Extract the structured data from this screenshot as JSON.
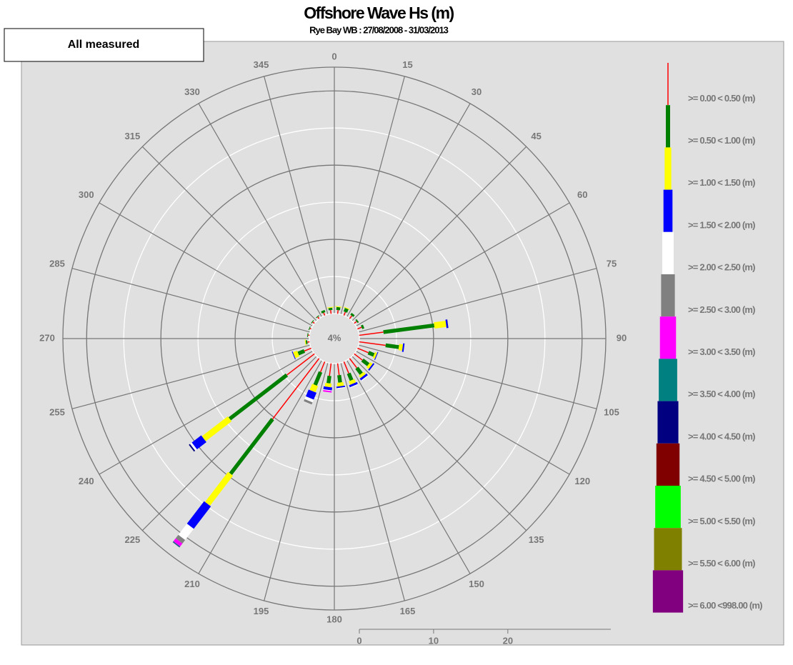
{
  "chart_data": {
    "type": "wave-rose",
    "title": "Offshore Wave Hs (m)",
    "subtitle": "Rye Bay WB : 27/08/2008 - 31/03/2013",
    "filter_label": "All measured",
    "center_label": "4%",
    "directions": [
      0,
      15,
      30,
      45,
      60,
      75,
      90,
      105,
      120,
      135,
      150,
      165,
      180,
      195,
      210,
      225,
      240,
      255,
      270,
      285,
      300,
      315,
      330,
      345
    ],
    "rlim": [
      0,
      33.2
    ],
    "rings": [
      5,
      10,
      15,
      20,
      25,
      30
    ],
    "scale_ticks": [
      0,
      10,
      20
    ],
    "series": [
      {
        "name": ">= 0.00 < 0.50 (m)",
        "color": "#ff0000",
        "values": [
          0.5,
          0.5,
          0.5,
          0.4,
          0.6,
          3.3,
          3.6,
          1.6,
          1.4,
          1.6,
          1.7,
          1.6,
          1.7,
          1.5,
          10.3,
          4.7,
          1.0,
          0.3,
          0.2,
          0.2,
          0.3,
          0.3,
          0.4,
          0.5
        ]
      },
      {
        "name": ">= 0.50 < 1.00 (m)",
        "color": "#008000",
        "values": [
          0.4,
          0.5,
          0.3,
          0.2,
          0.3,
          6.9,
          1.8,
          0.8,
          1.0,
          1.0,
          1.0,
          1.0,
          1.0,
          1.9,
          9.3,
          9.7,
          0.9,
          0.2,
          0.1,
          0.1,
          0.1,
          0.1,
          0.3,
          0.3
        ]
      },
      {
        "name": ">= 1.00 < 1.50 (m)",
        "color": "#ffff00",
        "values": [
          0.1,
          0.1,
          0,
          0,
          0,
          1.6,
          0.5,
          0.3,
          0.4,
          0.4,
          0.5,
          0.5,
          0.5,
          0.9,
          5.1,
          4.4,
          0.6,
          0.1,
          0,
          0,
          0,
          0,
          0,
          0.1
        ]
      },
      {
        "name": ">= 1.50 < 2.00 (m)",
        "color": "#0000ff",
        "values": [
          0,
          0,
          0,
          0,
          0,
          0.2,
          0.2,
          0.1,
          0.2,
          0.3,
          0.3,
          0.2,
          0.4,
          1.0,
          3.8,
          1.6,
          0.1,
          0,
          0,
          0,
          0,
          0,
          0,
          0
        ]
      },
      {
        "name": ">= 2.00 < 2.50 (m)",
        "color": "#ffffff",
        "values": [
          0,
          0,
          0,
          0,
          0,
          0,
          0,
          0,
          0,
          0.1,
          0.1,
          0.1,
          0.1,
          0.4,
          1.9,
          0.3,
          0,
          0,
          0,
          0,
          0,
          0,
          0,
          0
        ]
      },
      {
        "name": ">= 2.50 < 3.00 (m)",
        "color": "#808080",
        "values": [
          0,
          0,
          0,
          0,
          0,
          0,
          0,
          0,
          0,
          0,
          0,
          0,
          0,
          0.3,
          0.6,
          0,
          0,
          0,
          0,
          0,
          0,
          0,
          0,
          0
        ]
      },
      {
        "name": ">= 3.00 < 3.50 (m)",
        "color": "#ff00ff",
        "values": [
          0,
          0,
          0,
          0,
          0,
          0,
          0,
          0,
          0,
          0,
          0,
          0,
          0.2,
          0,
          0.5,
          0,
          0,
          0,
          0,
          0,
          0,
          0,
          0,
          0
        ]
      },
      {
        "name": ">= 3.50 < 4.00 (m)",
        "color": "#008080",
        "values": [
          0,
          0,
          0,
          0,
          0,
          0,
          0,
          0,
          0,
          0,
          0,
          0,
          0,
          0,
          0.1,
          0,
          0,
          0,
          0,
          0,
          0,
          0,
          0,
          0
        ]
      },
      {
        "name": ">= 4.00 < 4.50 (m)",
        "color": "#000080",
        "values": [
          0,
          0,
          0,
          0,
          0,
          0.05,
          0,
          0,
          0,
          0,
          0,
          0,
          0,
          0,
          0.05,
          0.2,
          0,
          0,
          0,
          0,
          0,
          0,
          0,
          0
        ]
      },
      {
        "name": ">= 4.50 < 5.00 (m)",
        "color": "#800000",
        "values": [
          0,
          0,
          0,
          0,
          0,
          0,
          0,
          0,
          0,
          0,
          0,
          0,
          0,
          0,
          0,
          0,
          0,
          0,
          0,
          0,
          0,
          0,
          0,
          0
        ]
      },
      {
        "name": ">= 5.00 < 5.50 (m)",
        "color": "#00ff00",
        "values": [
          0,
          0,
          0,
          0,
          0,
          0,
          0,
          0,
          0,
          0,
          0,
          0,
          0,
          0,
          0,
          0,
          0,
          0,
          0,
          0,
          0,
          0,
          0,
          0
        ]
      },
      {
        "name": ">= 5.50 < 6.00 (m)",
        "color": "#808000",
        "values": [
          0,
          0,
          0,
          0,
          0,
          0,
          0,
          0,
          0,
          0,
          0,
          0,
          0,
          0,
          0,
          0,
          0,
          0,
          0,
          0,
          0,
          0,
          0,
          0
        ]
      },
      {
        "name": ">= 6.00 <998.00 (m)",
        "color": "#800080",
        "values": [
          0,
          0,
          0,
          0,
          0,
          0,
          0,
          0,
          0,
          0,
          0,
          0,
          0,
          0,
          0,
          0,
          0,
          0,
          0,
          0,
          0,
          0,
          0,
          0
        ]
      }
    ]
  }
}
